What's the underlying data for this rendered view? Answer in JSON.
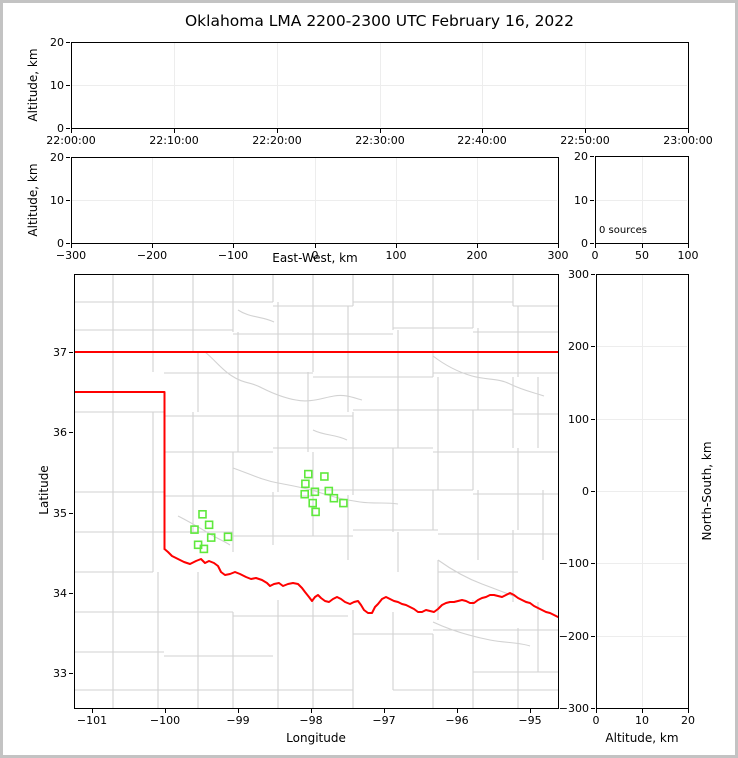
{
  "title": "Oklahoma LMA 2200-2300 UTC February 16, 2022",
  "colors": {
    "background": "#ffffff",
    "outer_border": "#c3c3c3",
    "frame": "#000000",
    "grid": "#ededed",
    "county_line": "#d2d2d2",
    "state_border": "#ff0000",
    "station_marker": "#5fe93c"
  },
  "panels": {
    "time_height": {
      "ylabel": "Altitude, km"
    },
    "ew_height": {
      "ylabel": "Altitude, km",
      "xlabel": "East-West, km"
    },
    "alt_histogram": {
      "annotation": "0 sources"
    },
    "plan_map": {
      "xlabel": "Longitude",
      "ylabel": "Latitude"
    },
    "ns_alt": {
      "xlabel": "Altitude, km",
      "ylabel_right": "North-South, km"
    }
  },
  "chart_data": [
    {
      "id": "time_height",
      "type": "scatter",
      "title": "Oklahoma LMA 2200-2300 UTC February 16, 2022",
      "xlabel": "",
      "ylabel": "Altitude, km",
      "xlim": [
        0,
        6
      ],
      "xticks": [
        0,
        1,
        2,
        3,
        4,
        5,
        6
      ],
      "xticklabels": [
        "22:00:00",
        "22:10:00",
        "22:20:00",
        "22:30:00",
        "22:40:00",
        "22:50:00",
        "23:00:00"
      ],
      "ylim": [
        0,
        20
      ],
      "yticks": [
        0,
        10,
        20
      ],
      "grid": true,
      "points": []
    },
    {
      "id": "ew_height",
      "type": "scatter",
      "xlabel": "East-West, km",
      "ylabel": "Altitude, km",
      "xlim": [
        -300,
        300
      ],
      "xticks": [
        -300,
        -200,
        -100,
        0,
        100,
        200,
        300
      ],
      "ylim": [
        0,
        20
      ],
      "yticks": [
        0,
        10,
        20
      ],
      "grid": true,
      "points": []
    },
    {
      "id": "alt_histogram",
      "type": "line",
      "annotation": "0 sources",
      "xlim": [
        0,
        100
      ],
      "xticks": [
        0,
        50,
        100
      ],
      "ylim": [
        0,
        20
      ],
      "yticks": [
        0,
        10,
        20
      ],
      "grid": true,
      "points": []
    },
    {
      "id": "plan_map",
      "type": "scatter",
      "xlabel": "Longitude",
      "ylabel": "Latitude",
      "xlim": [
        -101.24,
        -94.61
      ],
      "xticks": [
        -101,
        -100,
        -99,
        -98,
        -97,
        -96,
        -95
      ],
      "ylim": [
        32.57,
        37.97
      ],
      "yticks": [
        33,
        34,
        35,
        36,
        37
      ],
      "grid": false,
      "stations_lon_lat": [
        [
          -99.48,
          34.98
        ],
        [
          -99.39,
          34.85
        ],
        [
          -99.59,
          34.79
        ],
        [
          -99.36,
          34.69
        ],
        [
          -99.13,
          34.7
        ],
        [
          -99.54,
          34.6
        ],
        [
          -99.46,
          34.55
        ],
        [
          -98.03,
          35.48
        ],
        [
          -97.81,
          35.45
        ],
        [
          -98.07,
          35.36
        ],
        [
          -97.94,
          35.26
        ],
        [
          -98.08,
          35.23
        ],
        [
          -97.75,
          35.27
        ],
        [
          -97.68,
          35.18
        ],
        [
          -97.97,
          35.12
        ],
        [
          -97.55,
          35.12
        ],
        [
          -97.93,
          35.01
        ]
      ]
    },
    {
      "id": "ns_alt",
      "type": "scatter",
      "xlabel": "Altitude, km",
      "ylabel": "North-South, km",
      "xlim": [
        0,
        20
      ],
      "xticks": [
        0,
        10,
        20
      ],
      "ylim": [
        -300,
        300
      ],
      "yticks": [
        -300,
        -200,
        -100,
        0,
        100,
        200,
        300
      ],
      "grid": true,
      "points": []
    }
  ]
}
